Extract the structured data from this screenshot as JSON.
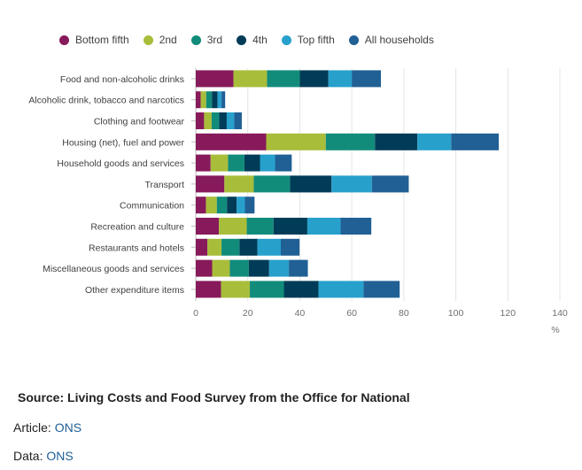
{
  "chart_data": {
    "type": "bar",
    "orientation": "horizontal",
    "stacked": true,
    "categories": [
      "Food and non-alcoholic drinks",
      "Alcoholic drink, tobacco and narcotics",
      "Clothing and footwear",
      "Housing (net), fuel and power",
      "Household goods and services",
      "Transport",
      "Communication",
      "Recreation and culture",
      "Restaurants and hotels",
      "Miscellaneous goods and services",
      "Other expenditure items"
    ],
    "series": [
      {
        "name": "Bottom fifth",
        "color": "#871a5b",
        "values": [
          14.5,
          1.9,
          3.2,
          27.1,
          5.7,
          11.0,
          3.9,
          8.9,
          4.5,
          6.3,
          9.7
        ]
      },
      {
        "name": "2nd",
        "color": "#a8bd3a",
        "values": [
          12.9,
          2.1,
          2.9,
          22.9,
          6.7,
          11.3,
          4.2,
          10.7,
          5.4,
          6.8,
          11.1
        ]
      },
      {
        "name": "3rd",
        "color": "#118c7b",
        "values": [
          12.6,
          2.2,
          2.9,
          18.9,
          6.3,
          13.9,
          3.9,
          10.3,
          6.9,
          7.3,
          13.1
        ]
      },
      {
        "name": "4th",
        "color": "#003c57",
        "values": [
          11.0,
          2.2,
          2.9,
          16.3,
          6.0,
          16.0,
          3.7,
          13.0,
          6.9,
          7.8,
          13.3
        ]
      },
      {
        "name": "Top fifth",
        "color": "#27a0cc",
        "values": [
          9.0,
          1.5,
          2.9,
          13.0,
          5.8,
          15.5,
          3.2,
          12.8,
          9.0,
          7.6,
          17.3
        ]
      },
      {
        "name": "All households",
        "color": "#206095",
        "values": [
          11.2,
          1.4,
          2.9,
          18.3,
          6.4,
          14.2,
          3.7,
          11.8,
          7.2,
          7.3,
          13.9
        ]
      }
    ],
    "xlim": [
      0,
      140
    ],
    "xticks": [
      0,
      20,
      40,
      60,
      80,
      100,
      120,
      140
    ],
    "xlabel": "%",
    "ylabel": "",
    "grid": true,
    "legend_position": "top"
  },
  "legend": {
    "items": [
      {
        "label": "Bottom fifth",
        "color": "#871a5b"
      },
      {
        "label": "2nd",
        "color": "#a8bd3a"
      },
      {
        "label": "3rd",
        "color": "#118c7b"
      },
      {
        "label": "4th",
        "color": "#003c57"
      },
      {
        "label": "Top fifth",
        "color": "#27a0cc"
      },
      {
        "label": "All households",
        "color": "#206095"
      }
    ]
  },
  "footer": {
    "source": "Source: Living Costs and Food Survey from the Office for National",
    "article_prefix": "Article: ",
    "article_link": "ONS",
    "data_prefix": "Data: ",
    "data_link": "ONS"
  }
}
